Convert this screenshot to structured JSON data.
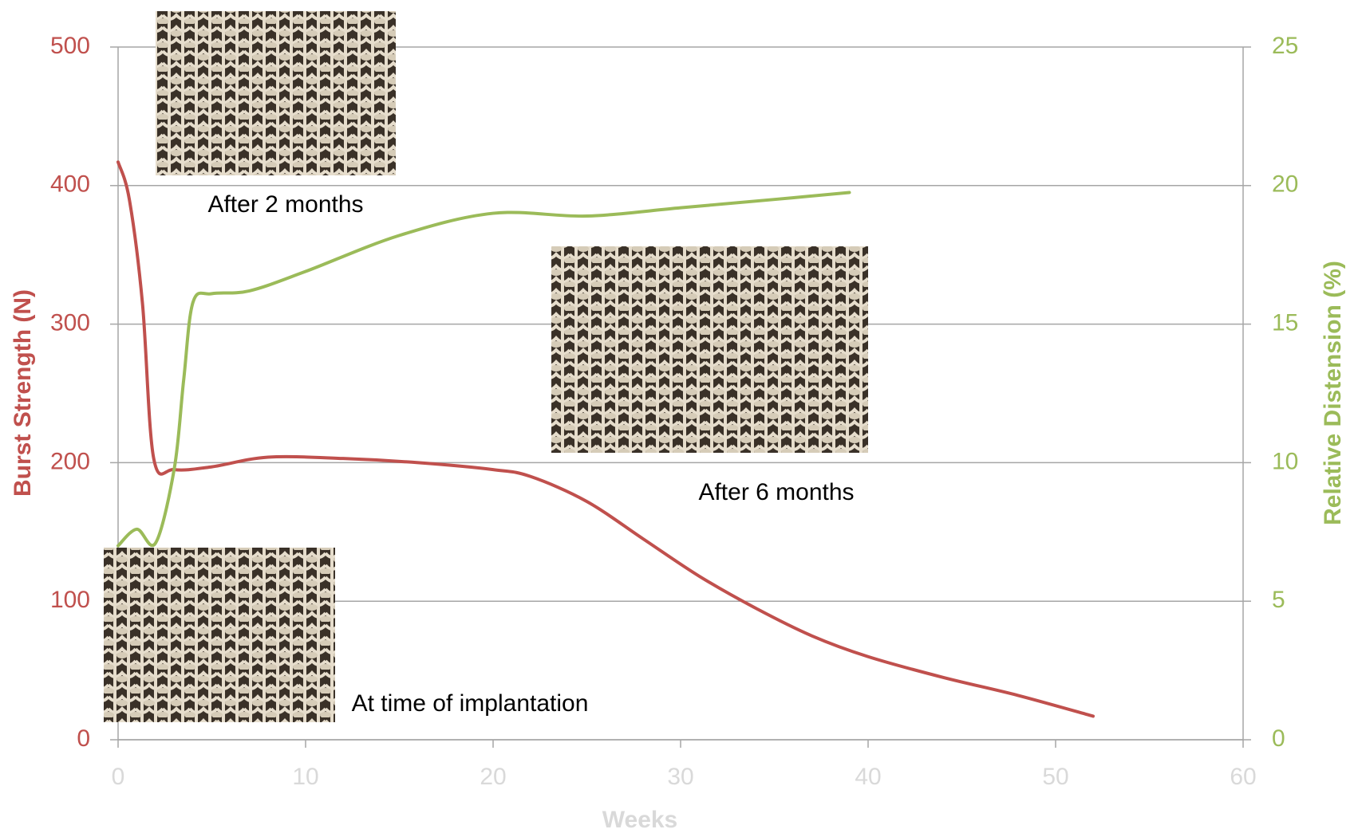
{
  "chart_data": {
    "type": "line",
    "xlabel": "Weeks",
    "ylabel": "Burst Strength (N)",
    "y2label": "Relative Distension (%)",
    "xlim": [
      0,
      60
    ],
    "xticks": [
      0,
      10,
      20,
      30,
      40,
      50,
      60
    ],
    "ylim": [
      0,
      500
    ],
    "yticks": [
      0,
      100,
      200,
      300,
      400,
      500
    ],
    "y2lim": [
      0,
      25
    ],
    "y2ticks": [
      0,
      5,
      10,
      15,
      20,
      25
    ],
    "grid": true,
    "series": [
      {
        "color": "#c0504d",
        "axis": "y",
        "x": [
          0,
          0.6,
          1.3,
          1.9,
          3,
          5,
          8,
          12,
          16,
          20,
          22,
          25,
          28,
          31,
          34,
          37,
          40,
          44,
          48,
          52
        ],
        "values": [
          417,
          390,
          315,
          203,
          195,
          197,
          204,
          203,
          200,
          195,
          190,
          172,
          145,
          118,
          95,
          75,
          60,
          45,
          32,
          17
        ]
      },
      {
        "color": "#9bbb59",
        "axis": "y2",
        "x": [
          0,
          1,
          2,
          3,
          3.5,
          4,
          5,
          7,
          10,
          15,
          20,
          25,
          30,
          35,
          39
        ],
        "values": [
          7.0,
          7.6,
          7.1,
          9.8,
          13,
          15.8,
          16.1,
          16.2,
          16.9,
          18.2,
          19.0,
          18.9,
          19.2,
          19.5,
          19.75
        ]
      }
    ],
    "annotations": [
      "After 2 months",
      "After 6 months",
      "At time of implantation"
    ]
  }
}
